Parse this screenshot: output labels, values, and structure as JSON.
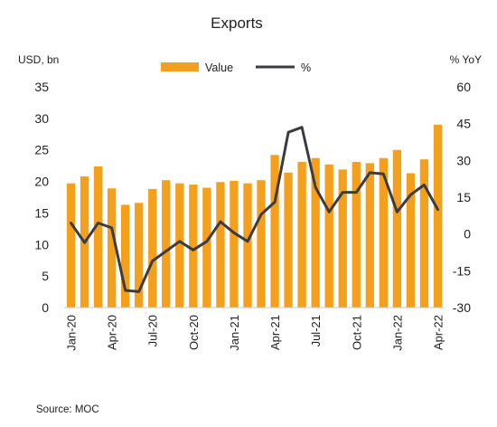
{
  "chart_data": {
    "type": "bar+line",
    "title": "Exports",
    "left_axis_label": "USD, bn",
    "right_axis_label": "% YoY",
    "source": "Source:  MOC",
    "x": [
      "Jan-20",
      "Feb-20",
      "Mar-20",
      "Apr-20",
      "May-20",
      "Jun-20",
      "Jul-20",
      "Aug-20",
      "Sep-20",
      "Oct-20",
      "Nov-20",
      "Dec-20",
      "Jan-21",
      "Feb-21",
      "Mar-21",
      "Apr-21",
      "May-21",
      "Jun-21",
      "Jul-21",
      "Aug-21",
      "Sep-21",
      "Oct-21",
      "Nov-21",
      "Dec-21",
      "Jan-22",
      "Feb-22",
      "Mar-22",
      "Apr-22"
    ],
    "x_tick_labels": [
      "Jan-20",
      "Apr-20",
      "Jul-20",
      "Oct-20",
      "Jan-21",
      "Apr-21",
      "Jul-21",
      "Oct-21",
      "Jan-22",
      "Apr-22"
    ],
    "y_left": {
      "min": 0,
      "max": 35,
      "ticks": [
        0,
        5,
        10,
        15,
        20,
        25,
        30,
        35
      ]
    },
    "y_right": {
      "min": -30,
      "max": 60,
      "ticks": [
        -30,
        -15,
        0,
        15,
        30,
        45,
        60
      ]
    },
    "series": [
      {
        "name": "Value",
        "kind": "bar",
        "axis": "left",
        "color": "#F5A01C",
        "values": [
          19.7,
          20.8,
          22.4,
          18.9,
          16.3,
          16.6,
          18.8,
          20.2,
          19.7,
          19.5,
          19.0,
          19.9,
          20.1,
          19.7,
          20.2,
          24.2,
          21.4,
          23.1,
          23.7,
          22.7,
          21.9,
          23.1,
          22.9,
          23.7,
          25.0,
          21.3,
          23.5,
          29.0
        ]
      },
      {
        "name": "%",
        "kind": "line",
        "axis": "right",
        "color": "#3D3A40",
        "values": [
          4.5,
          -3.5,
          4.5,
          2.5,
          -23,
          -23.5,
          -11,
          -7,
          -3,
          -6.5,
          -3,
          5,
          0.5,
          -3,
          8,
          13,
          41.5,
          43.5,
          19,
          9,
          17,
          17,
          25,
          24.5,
          9,
          16,
          20,
          10
        ]
      }
    ]
  }
}
